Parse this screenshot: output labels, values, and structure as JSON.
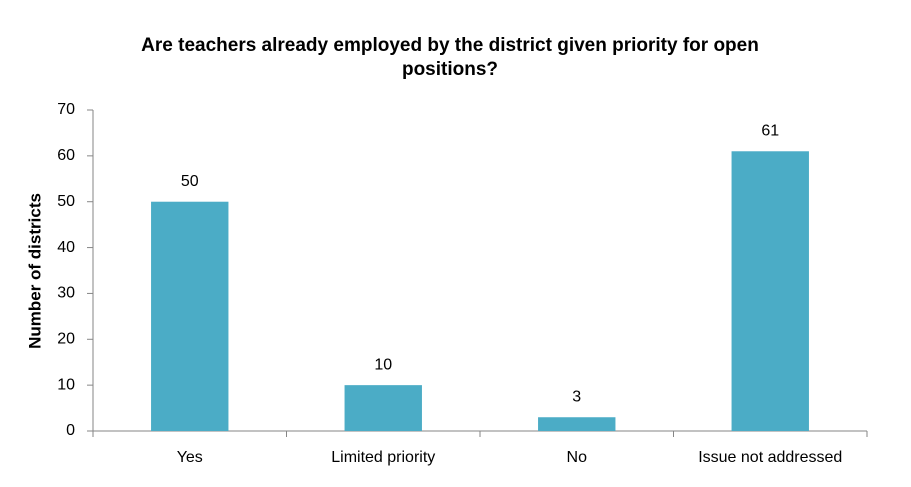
{
  "chart_data": {
    "type": "bar",
    "title": "Are teachers already employed by the district given priority for open positions?",
    "y_label": "Number of districts",
    "categories": [
      "Yes",
      "Limited priority",
      "No",
      "Issue not addressed"
    ],
    "values": [
      50,
      10,
      3,
      61
    ],
    "color": "#4bacc6",
    "ylim": [
      0,
      70
    ],
    "yticks": [
      0,
      10,
      20,
      30,
      40,
      50,
      60,
      70
    ],
    "grid": false
  }
}
